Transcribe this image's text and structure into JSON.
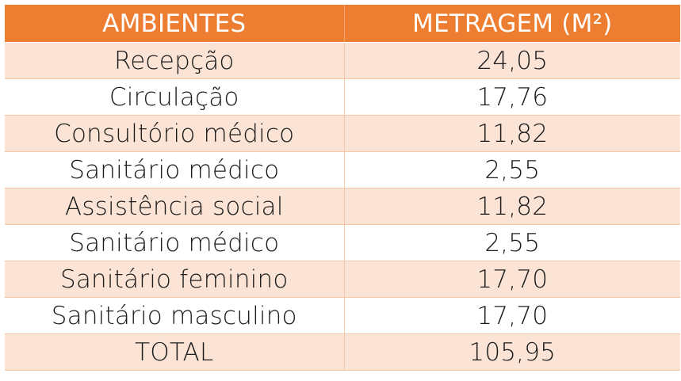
{
  "table": {
    "headers": [
      "AMBIENTES",
      "METRAGEM (M²)"
    ],
    "rows": [
      [
        "Recepção",
        "24,05"
      ],
      [
        "Circulação",
        "17,76"
      ],
      [
        "Consultório médico",
        "11,82"
      ],
      [
        "Sanitário médico",
        "2,55"
      ],
      [
        "Assistência social",
        "11,82"
      ],
      [
        "Sanitário médico",
        "2,55"
      ],
      [
        "Sanitário feminino",
        "17,70"
      ],
      [
        "Sanitário masculino",
        "17,70"
      ],
      [
        "TOTAL",
        "105,95"
      ]
    ]
  },
  "colors": {
    "header_bg": "#ed7d31",
    "header_text": "#ffffff",
    "band": "#fbe4d5",
    "row": "#ffffff"
  }
}
